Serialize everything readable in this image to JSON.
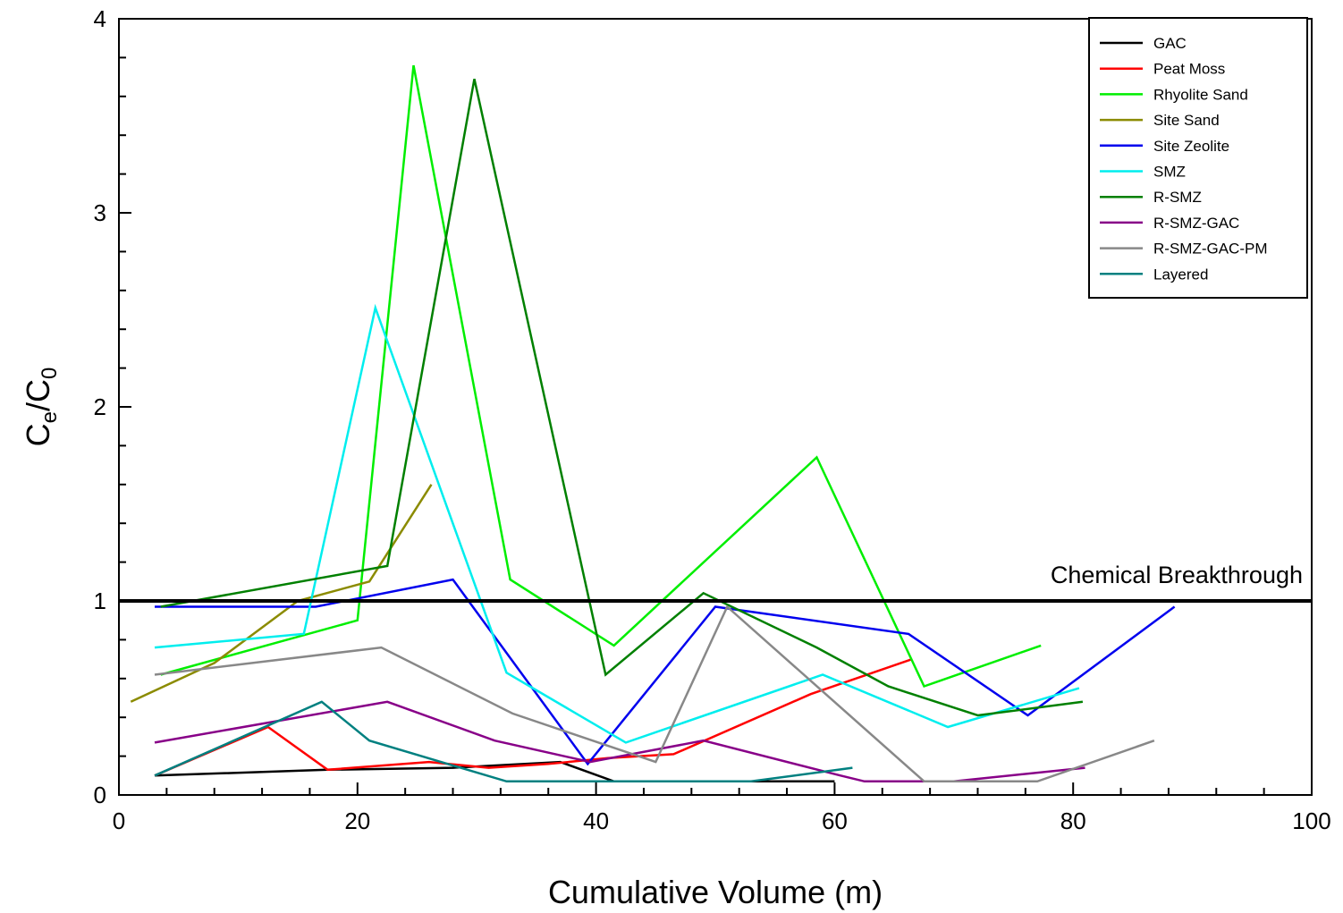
{
  "chart_data": {
    "type": "line",
    "title": "",
    "xlabel": "Cumulative Volume (m)",
    "ylabel": {
      "main": "C",
      "sub1": "e",
      "slash": "/C",
      "sub2": "0"
    },
    "xlim": [
      0,
      100
    ],
    "ylim": [
      0,
      4
    ],
    "xticks": [
      0,
      20,
      40,
      60,
      80,
      100
    ],
    "yticks": [
      0,
      1,
      2,
      3,
      4
    ],
    "xtick_labels": [
      "0",
      "20",
      "40",
      "60",
      "80",
      "100"
    ],
    "ytick_labels": [
      "0",
      "1",
      "2",
      "3",
      "4"
    ],
    "grid": false,
    "legend_position": "top-right",
    "reference_line": {
      "y": 1,
      "label": "Chemical Breakthrough",
      "color": "#000000"
    },
    "series": [
      {
        "name": "GAC",
        "color": "#000000",
        "x": [
          3.0,
          17.5,
          28.0,
          37.0,
          41.5,
          50.0,
          60.0
        ],
        "y": [
          0.1,
          0.13,
          0.14,
          0.17,
          0.07,
          0.07,
          0.07
        ]
      },
      {
        "name": "Peat Moss",
        "color": "#ff0000",
        "x": [
          3.0,
          12.5,
          17.5,
          26.0,
          31.0,
          36.0,
          41.0,
          46.5,
          58.0,
          66.5
        ],
        "y": [
          0.1,
          0.35,
          0.13,
          0.17,
          0.14,
          0.16,
          0.19,
          0.21,
          0.52,
          0.7
        ]
      },
      {
        "name": "Rhyolite Sand",
        "color": "#00ee00",
        "x": [
          3.5,
          20.0,
          24.7,
          32.8,
          41.5,
          58.5,
          67.5,
          77.3
        ],
        "y": [
          0.62,
          0.9,
          3.76,
          1.11,
          0.77,
          1.74,
          0.56,
          0.77
        ]
      },
      {
        "name": "Site Sand",
        "color": "#8b8b00",
        "x": [
          1.0,
          8.0,
          15.0,
          21.0,
          26.2
        ],
        "y": [
          0.48,
          0.68,
          1.0,
          1.1,
          1.6
        ]
      },
      {
        "name": "Site Zeolite",
        "color": "#0000ee",
        "x": [
          3.0,
          16.5,
          28.0,
          39.3,
          50.0,
          66.2,
          76.2,
          88.5
        ],
        "y": [
          0.97,
          0.97,
          1.11,
          0.16,
          0.97,
          0.83,
          0.41,
          0.97
        ]
      },
      {
        "name": "SMZ",
        "color": "#00eeee",
        "x": [
          3.0,
          15.5,
          21.5,
          32.5,
          42.5,
          59.0,
          69.5,
          80.5
        ],
        "y": [
          0.76,
          0.83,
          2.51,
          0.63,
          0.27,
          0.62,
          0.35,
          0.55
        ]
      },
      {
        "name": "R-SMZ",
        "color": "#008000",
        "x": [
          3.5,
          22.5,
          29.8,
          40.8,
          49.0,
          58.5,
          64.5,
          72.0,
          80.8
        ],
        "y": [
          0.97,
          1.18,
          3.69,
          0.62,
          1.04,
          0.76,
          0.56,
          0.41,
          0.48
        ]
      },
      {
        "name": "R-SMZ-GAC",
        "color": "#880088",
        "x": [
          3.0,
          22.5,
          31.5,
          39.5,
          49.0,
          60.5,
          62.5,
          70.0,
          81.0
        ],
        "y": [
          0.27,
          0.48,
          0.28,
          0.17,
          0.28,
          0.1,
          0.07,
          0.07,
          0.14
        ]
      },
      {
        "name": "R-SMZ-GAC-PM",
        "color": "#888888",
        "x": [
          3.0,
          22.0,
          33.0,
          45.0,
          51.0,
          67.5,
          77.0,
          86.8
        ],
        "y": [
          0.62,
          0.76,
          0.42,
          0.17,
          0.97,
          0.07,
          0.07,
          0.28
        ]
      },
      {
        "name": "Layered",
        "color": "#008080",
        "x": [
          3.0,
          17.0,
          21.0,
          27.0,
          32.5,
          53.0,
          61.5
        ],
        "y": [
          0.1,
          0.48,
          0.28,
          0.17,
          0.07,
          0.07,
          0.14
        ]
      }
    ]
  }
}
